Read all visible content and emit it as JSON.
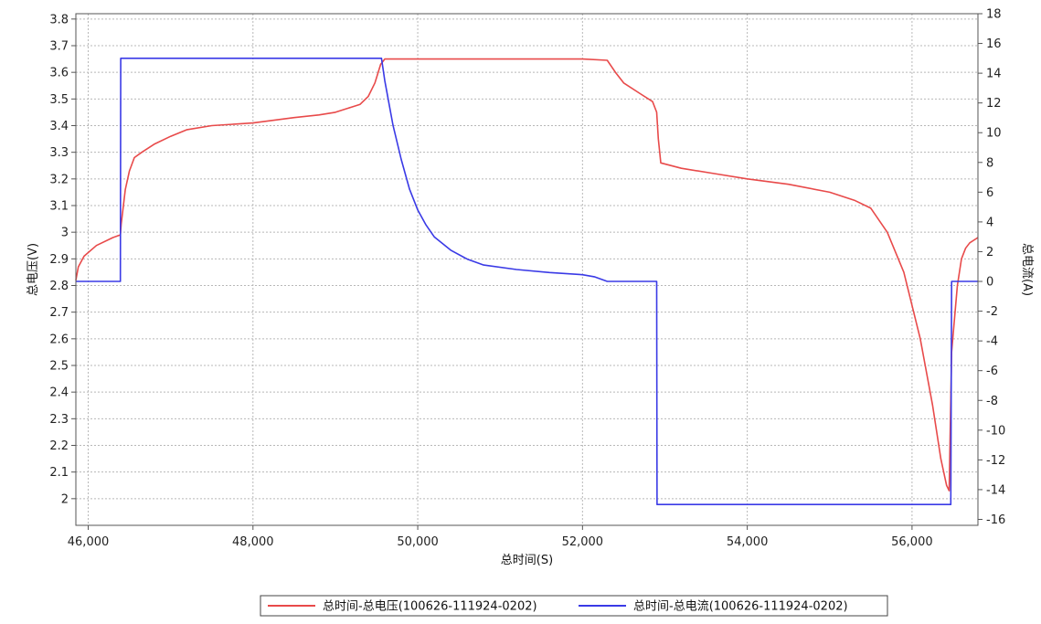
{
  "chart_data": {
    "type": "line",
    "title": "",
    "xlabel": "总时间(S)",
    "ylabel": "总电压(V)",
    "y2label": "总电流(A)",
    "xlim": [
      45850,
      56800
    ],
    "ylim": [
      1.9,
      3.82
    ],
    "y2lim": [
      -16.4,
      18
    ],
    "x_ticks": [
      46000,
      48000,
      50000,
      52000,
      54000,
      56000
    ],
    "x_tick_labels": [
      "46,000",
      "48,000",
      "50,000",
      "52,000",
      "54,000",
      "56,000"
    ],
    "y_ticks": [
      2,
      2.1,
      2.2,
      2.3,
      2.4,
      2.5,
      2.6,
      2.7,
      2.8,
      2.9,
      3,
      3.1,
      3.2,
      3.3,
      3.4,
      3.5,
      3.6,
      3.7,
      3.8
    ],
    "y_tick_labels": [
      "2",
      "2.1",
      "2.2",
      "2.3",
      "2.4",
      "2.5",
      "2.6",
      "2.7",
      "2.8",
      "2.9",
      "3",
      "3.1",
      "3.2",
      "3.3",
      "3.4",
      "3.5",
      "3.6",
      "3.7",
      "3.8"
    ],
    "y2_ticks": [
      -16,
      -14,
      -12,
      -10,
      -8,
      -6,
      -4,
      -2,
      0,
      2,
      4,
      6,
      8,
      10,
      12,
      14,
      16,
      18
    ],
    "y2_tick_labels": [
      "-16",
      "-14",
      "-12",
      "-10",
      "-8",
      "-6",
      "-4",
      "-2",
      "0",
      "2",
      "4",
      "6",
      "8",
      "10",
      "12",
      "14",
      "16",
      "18"
    ],
    "grid": true,
    "legend_position": "bottom-center",
    "series": [
      {
        "name": "总时间-总电压(100626-111924-0202)",
        "axis": "left",
        "color": "#e84a4a",
        "x": [
          45850,
          45880,
          45950,
          46100,
          46300,
          46390,
          46400,
          46450,
          46500,
          46560,
          46650,
          46800,
          47000,
          47200,
          47500,
          48000,
          48500,
          48800,
          49000,
          49200,
          49300,
          49400,
          49480,
          49550,
          49600,
          50000,
          51000,
          52000,
          52300,
          52400,
          52500,
          52700,
          52850,
          52900,
          52920,
          52950,
          53200,
          53600,
          54000,
          54500,
          55000,
          55300,
          55500,
          55700,
          55900,
          56100,
          56250,
          56350,
          56420,
          56450,
          56480,
          56550,
          56600,
          56650,
          56700,
          56800
        ],
        "values": [
          2.82,
          2.87,
          2.91,
          2.95,
          2.98,
          2.99,
          3.03,
          3.16,
          3.23,
          3.28,
          3.3,
          3.33,
          3.36,
          3.385,
          3.4,
          3.41,
          3.43,
          3.44,
          3.45,
          3.47,
          3.48,
          3.51,
          3.56,
          3.63,
          3.65,
          3.65,
          3.65,
          3.65,
          3.645,
          3.6,
          3.56,
          3.52,
          3.49,
          3.45,
          3.35,
          3.26,
          3.24,
          3.22,
          3.2,
          3.18,
          3.15,
          3.12,
          3.09,
          3.0,
          2.85,
          2.6,
          2.35,
          2.15,
          2.05,
          2.03,
          2.55,
          2.8,
          2.9,
          2.94,
          2.96,
          2.98
        ]
      },
      {
        "name": "总时间-总电流(100626-111924-0202)",
        "axis": "right",
        "color": "#3a3ae6",
        "x": [
          45850,
          46390,
          46395,
          49500,
          49560,
          49600,
          49700,
          49800,
          49900,
          50000,
          50100,
          50200,
          50400,
          50600,
          50800,
          51200,
          51600,
          52000,
          52150,
          52300,
          52800,
          52900,
          52905,
          56420,
          56450,
          56470,
          56480,
          56800
        ],
        "values": [
          0,
          0,
          15,
          15,
          15,
          13.5,
          10.5,
          8.2,
          6.2,
          4.8,
          3.8,
          3.0,
          2.1,
          1.5,
          1.1,
          0.8,
          0.6,
          0.45,
          0.3,
          0,
          0,
          0,
          -15,
          -15,
          -15,
          -15,
          0,
          0
        ]
      }
    ]
  }
}
